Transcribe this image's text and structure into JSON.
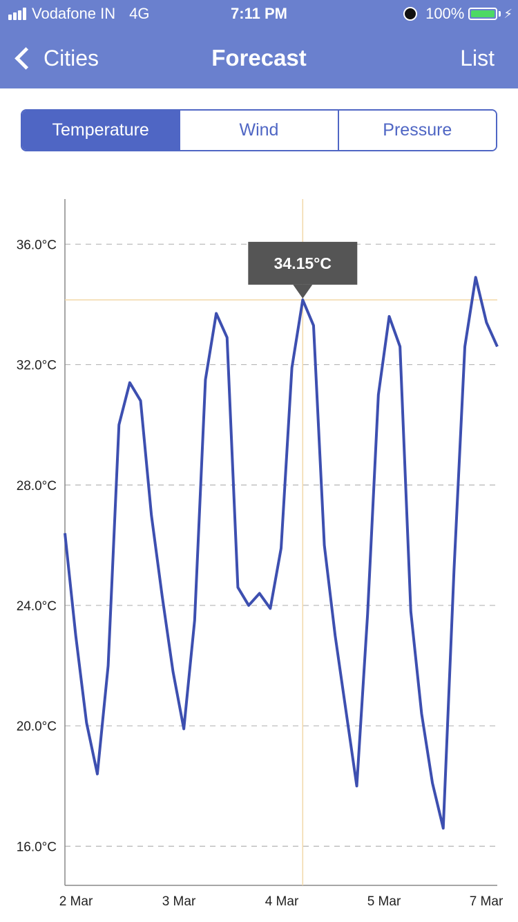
{
  "status_bar": {
    "carrier": "Vodafone IN",
    "network": "4G",
    "time": "7:11 PM",
    "battery": "100%"
  },
  "nav": {
    "back_label": "Cities",
    "title": "Forecast",
    "right_label": "List"
  },
  "tabs": [
    {
      "label": "Temperature",
      "active": true
    },
    {
      "label": "Wind",
      "active": false
    },
    {
      "label": "Pressure",
      "active": false
    }
  ],
  "colors": {
    "nav_bar": "#6a80ce",
    "accent": "#4f66c4",
    "line": "#3d4fb0",
    "crosshair": "#f2d8a8",
    "tooltip_bg": "#555555",
    "battery": "#4cd964"
  },
  "chart_data": {
    "type": "line",
    "x_unit": "day",
    "x_start_label": "2 Mar",
    "x_ticks": [
      "2 Mar",
      "3 Mar",
      "4 Mar",
      "5 Mar",
      "7 Mar"
    ],
    "y_ticks": [
      "16.0°C",
      "20.0°C",
      "24.0°C",
      "28.0°C",
      "32.0°C",
      "36.0°C"
    ],
    "ylim": [
      14.7,
      37.5
    ],
    "grid": "horizontal-dashed",
    "selected": {
      "index": 22,
      "label": "34.15°C"
    },
    "series": [
      {
        "x": [
          0,
          0.125,
          0.25,
          0.375,
          0.5,
          0.625,
          0.75,
          0.875,
          1.0,
          1.125,
          1.25,
          1.375,
          1.5,
          1.625,
          1.75,
          1.875,
          2.0,
          2.125,
          2.25,
          2.375,
          2.5,
          2.625,
          2.75,
          2.875,
          3.0,
          3.125,
          3.25,
          3.375,
          3.5,
          3.625,
          3.75,
          3.875,
          4.0,
          4.125,
          4.25,
          4.375,
          4.5,
          4.625,
          4.75,
          4.875,
          5.0
        ],
        "values": [
          26.4,
          23.0,
          20.1,
          18.4,
          22.0,
          30.0,
          31.4,
          30.8,
          27.0,
          24.3,
          21.8,
          19.9,
          23.5,
          31.5,
          33.7,
          32.9,
          24.6,
          24.0,
          24.4,
          23.9,
          25.9,
          31.9,
          34.15,
          33.3,
          26.0,
          23.0,
          20.5,
          18.0,
          23.7,
          31.0,
          33.6,
          32.6,
          23.8,
          20.4,
          18.1,
          16.6,
          25.2,
          32.6,
          34.9,
          33.4,
          32.6
        ]
      }
    ]
  }
}
